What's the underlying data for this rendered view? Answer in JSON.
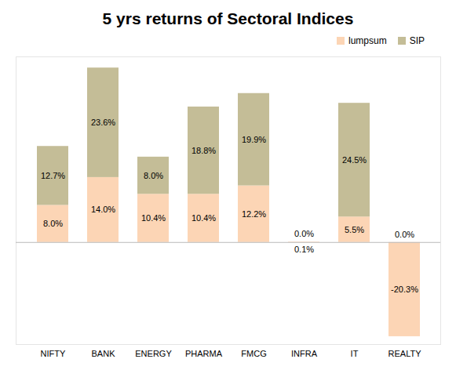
{
  "chart_data": {
    "type": "bar",
    "title": "5 yrs returns of Sectoral Indices",
    "categories": [
      "NIFTY",
      "BANK",
      "ENERGY",
      "PHARMA",
      "FMCG",
      "INFRA",
      "IT",
      "REALTY"
    ],
    "series": [
      {
        "name": "lumpsum",
        "color": "#fcd5b5",
        "values": [
          8.0,
          14.0,
          10.4,
          10.4,
          12.2,
          0.1,
          5.5,
          -20.3
        ],
        "value_labels": [
          "8.0%",
          "14.0%",
          "10.4%",
          "10.4%",
          "12.2%",
          "0.1%",
          "5.5%",
          "-20.3%"
        ]
      },
      {
        "name": "SIP",
        "color": "#c4bd97",
        "values": [
          12.7,
          23.6,
          8.0,
          18.8,
          19.9,
          0.0,
          24.5,
          0.0
        ],
        "value_labels": [
          "12.7%",
          "23.6%",
          "8.0%",
          "18.8%",
          "19.9%",
          "0.0%",
          "24.5%",
          "0.0%"
        ]
      }
    ],
    "ylim": [
      -22,
      40
    ],
    "yticks": [],
    "stacked": true,
    "data_labels": true,
    "legend": "top-right",
    "tick_labels": "x",
    "grid": false
  }
}
